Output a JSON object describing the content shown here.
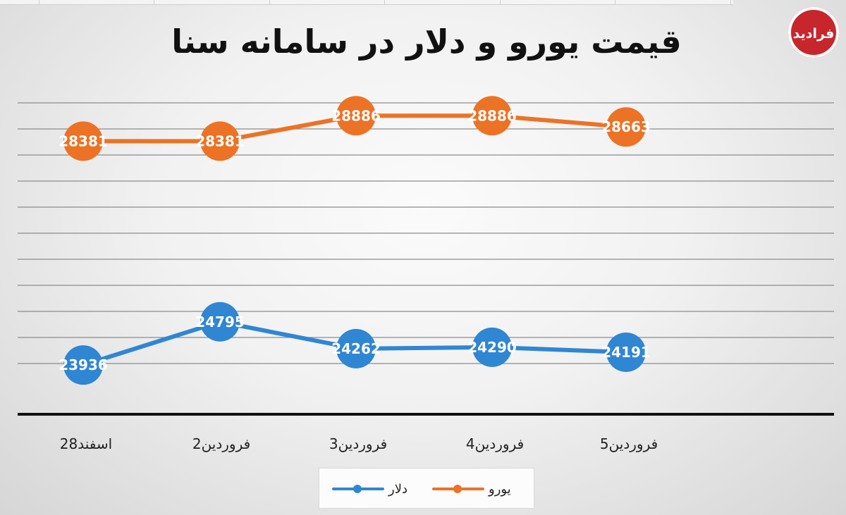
{
  "chart_data": {
    "type": "line",
    "title": "قیمت یورو و دلار در سامانه سنا",
    "categories": [
      "28اسفند",
      "2فروردین",
      "3فروردین",
      "4فروردین",
      "5فروردین"
    ],
    "series": [
      {
        "name": "یورو",
        "color": "#ec7225",
        "values": [
          28381,
          28381,
          28886,
          28886,
          28663
        ]
      },
      {
        "name": "دلار",
        "color": "#2f86d3",
        "values": [
          23936,
          24795,
          24262,
          24290,
          24191
        ]
      }
    ],
    "value_labels": {
      "euro": [
        "28381",
        "28381",
        "28886",
        "28886",
        "28663"
      ],
      "dollar": [
        "23936",
        "24795",
        "24262",
        "24290",
        "24191"
      ]
    },
    "grid": true,
    "legend_position": "bottom"
  },
  "legend": {
    "dollar_label": "دلار",
    "euro_label": "یورو"
  },
  "logo": {
    "text": "فرادید",
    "icon": "faradeed-logo-icon"
  }
}
